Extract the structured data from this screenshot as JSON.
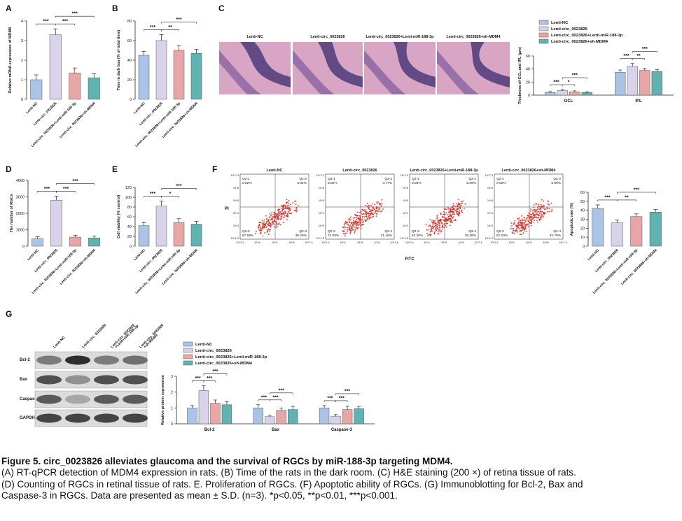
{
  "colors": {
    "lenti_nc": "#a9c4e6",
    "lenti_circ": "#d8d2ea",
    "lenti_circ_mir": "#e8a7a6",
    "lenti_circ_shmdm4": "#5fb3b0",
    "he_stain": "#d9a5c4",
    "cyto_red": "#e23028"
  },
  "panels": {
    "A": {
      "letter": "A"
    },
    "B": {
      "letter": "B"
    },
    "C": {
      "letter": "C"
    },
    "D": {
      "letter": "D"
    },
    "E": {
      "letter": "E"
    },
    "F": {
      "letter": "F"
    },
    "G": {
      "letter": "G"
    }
  },
  "group_labels": [
    "Lenti-NC",
    "Lenti-circ_0023826",
    "Lenti-circ_0023826+Lenti-miR-188-3p",
    "Lenti-circ_0023826+sh-MDM4"
  ],
  "legend": [
    "Lenti-NC",
    "Lenti-circ_0023826",
    "Lenti-circ_0023826+Lenti-miR-188-3p",
    "Lenti-circ_0023826+sh-MDM4"
  ],
  "he_titles": [
    "Lenti-NC",
    "Lenti-circ_0023826",
    "Lenti-circ_0023826+Lenti-miR-188-3p",
    "Lenti-circ_0023826+sh-MDM4"
  ],
  "flow": {
    "titles": [
      "Lenti-NC",
      "Lenti-circ_0023826",
      "Lenti-circ_0023826+Lenti-miR-188-3p",
      "Lenti-circ_0023826+sh-MDM4"
    ],
    "ylabel": "PI",
    "xlabel": "FITC",
    "quadrants": [
      {
        "q1": "Q2-1\n0.02%",
        "q2": "Q2-2\n6.02%",
        "q3": "Q2-3\n57.68%",
        "q4": "Q2-4\n36.28%"
      },
      {
        "q1": "Q2-1\n0.02%",
        "q2": "Q2-2\n4.77%",
        "q3": "Q2-3\n74.05%",
        "q4": "Q2-4\n21.16%"
      },
      {
        "q1": "Q2-1\n0.03%",
        "q2": "Q2-2\n6.39%",
        "q3": "Q2-3\n67.30%",
        "q4": "Q2-4\n26.29%"
      },
      {
        "q1": "Q2-1\n0.02%",
        "q2": "Q2-2\n5.99%",
        "q3": "Q2-3\n61.20%",
        "q4": "Q2-4\n32.79%"
      }
    ],
    "ytick_labels": [
      "10^7.3",
      "10^6",
      "10^5",
      "10^4",
      "10^3",
      "10^1.3"
    ],
    "xtick_labels": [
      "10^2.4",
      "10^4",
      "10^5",
      "10^6",
      "10^7.4"
    ]
  },
  "western": {
    "lane_labels": [
      "Lenti-NC",
      "Lenti-circ_0023826",
      "Lenti-circ_0023826\n+Lenti-miR-188-3p",
      "Lenti-circ_0023826\n+sh-MDM4"
    ],
    "rows": [
      "Bcl-2",
      "Bax",
      "Caspase-3",
      "GAPDH"
    ]
  },
  "chart_data": [
    {
      "panel": "A",
      "type": "bar",
      "categories": [
        "Lenti-NC",
        "Lenti-circ_0023826",
        "Lenti-circ_0023826+Lenti-miR-188-3p",
        "Lenti-circ_0023826+sh-MDM4"
      ],
      "values": [
        1.0,
        3.3,
        1.35,
        1.1
      ],
      "errors": [
        0.25,
        0.3,
        0.25,
        0.2
      ],
      "ylabel": "Relative mRNA expression of MDM4",
      "ylim": [
        0,
        4
      ],
      "yticks": [
        0,
        1,
        2,
        3,
        4
      ],
      "sig": [
        {
          "from": 0,
          "to": 1,
          "label": "***"
        },
        {
          "from": 1,
          "to": 2,
          "label": "***"
        },
        {
          "from": 1,
          "to": 3,
          "label": "***"
        }
      ]
    },
    {
      "panel": "B",
      "type": "bar",
      "categories": [
        "Lenti-NC",
        "Lenti-circ_0023826",
        "Lenti-circ_0023826+Lenti-miR-188-3p",
        "Lenti-circ_0023826+sh-MDM4"
      ],
      "values": [
        45,
        60,
        50,
        47
      ],
      "errors": [
        4,
        6,
        5,
        4
      ],
      "ylabel": "Time in dark box (% of total time)",
      "ylim": [
        0,
        80
      ],
      "yticks": [
        0,
        20,
        40,
        60,
        80
      ],
      "sig": [
        {
          "from": 0,
          "to": 1,
          "label": "***"
        },
        {
          "from": 1,
          "to": 2,
          "label": "**"
        },
        {
          "from": 1,
          "to": 3,
          "label": "***"
        }
      ]
    },
    {
      "panel": "C",
      "type": "bar",
      "categories": [
        "GCL",
        "IPL"
      ],
      "series": [
        {
          "name": "Lenti-NC",
          "values": [
            4,
            35
          ],
          "errors": [
            1.5,
            3.5
          ]
        },
        {
          "name": "Lenti-circ_0023826",
          "values": [
            7,
            44
          ],
          "errors": [
            1.5,
            4.5
          ]
        },
        {
          "name": "Lenti-circ_0023826+Lenti-miR-188-3p",
          "values": [
            5,
            38
          ],
          "errors": [
            1.5,
            3
          ]
        },
        {
          "name": "Lenti-circ_0023826+sh-MDM4",
          "values": [
            4,
            36
          ],
          "errors": [
            1.2,
            3
          ]
        }
      ],
      "ylabel": "Thickness of GCL and IPL (μm)",
      "ylim": [
        0,
        60
      ],
      "yticks": [
        0,
        20,
        40,
        60
      ],
      "sig": [
        {
          "cat": 0,
          "from": 0,
          "to": 1,
          "label": "***"
        },
        {
          "cat": 0,
          "from": 1,
          "to": 2,
          "label": "*"
        },
        {
          "cat": 0,
          "from": 1,
          "to": 3,
          "label": "***"
        },
        {
          "cat": 1,
          "from": 0,
          "to": 1,
          "label": "***"
        },
        {
          "cat": 1,
          "from": 1,
          "to": 2,
          "label": "**"
        },
        {
          "cat": 1,
          "from": 1,
          "to": 3,
          "label": "***"
        }
      ]
    },
    {
      "panel": "D",
      "type": "bar",
      "categories": [
        "Lenti-NC",
        "Lenti-circ_0023826",
        "Lenti-circ_0023826+Lenti-miR-188-3p",
        "Lenti-circ_0023826+sh-MDM4"
      ],
      "values": [
        450,
        2800,
        550,
        500
      ],
      "errors": [
        120,
        250,
        120,
        120
      ],
      "ylabel": "The number of RGCs",
      "ylim": [
        0,
        4000
      ],
      "yticks": [
        0,
        1000,
        2000,
        3000,
        4000
      ],
      "sig": [
        {
          "from": 0,
          "to": 1,
          "label": "***"
        },
        {
          "from": 1,
          "to": 2,
          "label": "***"
        },
        {
          "from": 1,
          "to": 3,
          "label": "***"
        }
      ]
    },
    {
      "panel": "E",
      "type": "bar",
      "categories": [
        "Lenti-NC",
        "Lenti-circ_0023826",
        "Lenti-circ_0023826+Lenti-miR-188-3p",
        "Lenti-circ_0023826+sh-MDM4"
      ],
      "values": [
        42,
        82,
        48,
        45
      ],
      "errors": [
        6,
        10,
        8,
        6
      ],
      "ylabel": "Cell viability (% control)",
      "ylim": [
        0,
        120
      ],
      "yticks": [
        0,
        20,
        40,
        60,
        80,
        100,
        120
      ],
      "sig": [
        {
          "from": 0,
          "to": 1,
          "label": "***"
        },
        {
          "from": 1,
          "to": 2,
          "label": "*"
        },
        {
          "from": 1,
          "to": 3,
          "label": "***"
        }
      ]
    },
    {
      "panel": "F",
      "type": "bar",
      "categories": [
        "Lenti-NC",
        "Lenti-circ_0023826",
        "Lenti-circ_0023826+Lenti-miR-188-3p",
        "Lenti-circ_0023826+sh-MDM4"
      ],
      "values": [
        42,
        26,
        33,
        38
      ],
      "errors": [
        4,
        3,
        3,
        3
      ],
      "ylabel": "Apoptotic rate (%)",
      "ylim": [
        0,
        60
      ],
      "yticks": [
        0,
        10,
        20,
        30,
        40,
        50,
        60
      ],
      "sig": [
        {
          "from": 0,
          "to": 1,
          "label": "***"
        },
        {
          "from": 1,
          "to": 2,
          "label": "**"
        },
        {
          "from": 1,
          "to": 3,
          "label": "***"
        }
      ]
    },
    {
      "panel": "G",
      "type": "bar",
      "categories": [
        "Bcl-2",
        "Bax",
        "Caspase-3"
      ],
      "series": [
        {
          "name": "Lenti-NC",
          "values": [
            1.0,
            1.0,
            1.0
          ],
          "errors": [
            0.15,
            0.2,
            0.15
          ]
        },
        {
          "name": "Lenti-circ_0023826",
          "values": [
            2.1,
            0.45,
            0.48
          ],
          "errors": [
            0.3,
            0.08,
            0.1
          ]
        },
        {
          "name": "Lenti-circ_0023826+Lenti-miR-188-3p",
          "values": [
            1.3,
            0.85,
            0.9
          ],
          "errors": [
            0.2,
            0.15,
            0.2
          ]
        },
        {
          "name": "Lenti-circ_0023826+sh-MDM4",
          "values": [
            1.2,
            0.9,
            0.95
          ],
          "errors": [
            0.2,
            0.2,
            0.15
          ]
        }
      ],
      "ylabel": "Relative protein expression",
      "ylim": [
        0,
        3
      ],
      "yticks": [
        0,
        1,
        2,
        3
      ],
      "sig": [
        {
          "cat": 0,
          "from": 0,
          "to": 1,
          "label": "***"
        },
        {
          "cat": 0,
          "from": 1,
          "to": 2,
          "label": "***"
        },
        {
          "cat": 0,
          "from": 1,
          "to": 3,
          "label": "***"
        },
        {
          "cat": 1,
          "from": 0,
          "to": 1,
          "label": "***"
        },
        {
          "cat": 1,
          "from": 1,
          "to": 2,
          "label": "***"
        },
        {
          "cat": 1,
          "from": 1,
          "to": 3,
          "label": "***"
        },
        {
          "cat": 2,
          "from": 0,
          "to": 1,
          "label": "***"
        },
        {
          "cat": 2,
          "from": 1,
          "to": 2,
          "label": "***"
        },
        {
          "cat": 2,
          "from": 1,
          "to": 3,
          "label": "***"
        }
      ]
    }
  ],
  "caption": {
    "title": "Figure 5. circ_0023826 alleviates glaucoma and the survival of RGCs by miR-188-3p targeting MDM4.",
    "lines": [
      "(A) RT-qPCR detection of MDM4 expression in rats. (B) Time of the rats in the dark room. (C) H&E staining (200 ×) of retina tissue of rats.",
      "(D) Counting of RGCs in retinal tissue of rats. E. Proliferation of RGCs. (F) Apoptotic ability of RGCs. (G) Immunoblotting for Bcl-2, Bax and",
      "Caspase-3 in RGCs. Data are presented as mean ± S.D. (n=3). *p<0.05, **p<0.01, ***p<0.001."
    ]
  }
}
